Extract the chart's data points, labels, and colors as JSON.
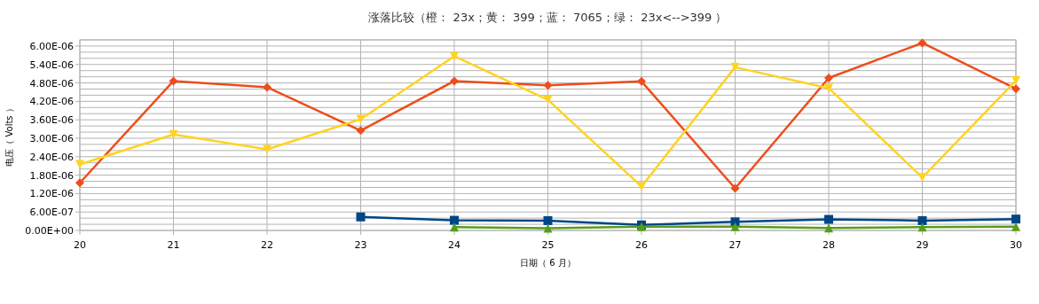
{
  "chart_data": {
    "type": "line",
    "title": "涨落比较（橙： 23x；黄： 399；蓝： 7065；绿： 23x<-->399 ）",
    "xlabel": "日期（ 6 月）",
    "ylabel": "电压（ Volts ）",
    "x": [
      20,
      21,
      22,
      23,
      24,
      25,
      26,
      27,
      28,
      29,
      30
    ],
    "series": [
      {
        "color": "#ee4d1b",
        "marker": "diamond",
        "values": [
          1.55e-06,
          4.86e-06,
          4.66e-06,
          3.25e-06,
          4.86e-06,
          4.72e-06,
          4.85e-06,
          1.37e-06,
          4.96e-06,
          6.1e-06,
          4.61e-06
        ]
      },
      {
        "color": "#ffd320",
        "marker": "triangle-down",
        "values": [
          2.15e-06,
          3.12e-06,
          2.64e-06,
          3.62e-06,
          5.67e-06,
          4.25e-06,
          1.43e-06,
          5.31e-06,
          4.63e-06,
          1.72e-06,
          4.88e-06
        ]
      },
      {
        "color": "#004586",
        "marker": "square",
        "values": [
          null,
          null,
          null,
          4.4e-07,
          3.3e-07,
          3.2e-07,
          1.8e-07,
          2.8e-07,
          3.6e-07,
          3.2e-07,
          3.7e-07
        ]
      },
      {
        "color": "#579d1c",
        "marker": "triangle",
        "values": [
          null,
          null,
          null,
          null,
          1.1e-07,
          7e-08,
          1.2e-07,
          1.2e-07,
          8e-08,
          1.1e-07,
          1.2e-07
        ]
      }
    ],
    "xlim": [
      20,
      30
    ],
    "xticks": [
      20,
      21,
      22,
      23,
      24,
      25,
      26,
      27,
      28,
      29,
      30
    ],
    "ylim": [
      0,
      6.2e-06
    ],
    "yticks": [
      {
        "value": 0,
        "label": "0.00E+00"
      },
      {
        "value": 2e-07,
        "label": null
      },
      {
        "value": 4e-07,
        "label": null
      },
      {
        "value": 6e-07,
        "label": "6.00E-07"
      },
      {
        "value": 8e-07,
        "label": null
      },
      {
        "value": 1e-06,
        "label": null
      },
      {
        "value": 1.2e-06,
        "label": "1.20E-06"
      },
      {
        "value": 1.4e-06,
        "label": null
      },
      {
        "value": 1.6e-06,
        "label": null
      },
      {
        "value": 1.8e-06,
        "label": "1.80E-06"
      },
      {
        "value": 2e-06,
        "label": null
      },
      {
        "value": 2.2e-06,
        "label": null
      },
      {
        "value": 2.4e-06,
        "label": "2.40E-06"
      },
      {
        "value": 2.6e-06,
        "label": null
      },
      {
        "value": 2.8e-06,
        "label": null
      },
      {
        "value": 3e-06,
        "label": "3.00E-06"
      },
      {
        "value": 3.2e-06,
        "label": null
      },
      {
        "value": 3.4e-06,
        "label": null
      },
      {
        "value": 3.6e-06,
        "label": "3.60E-06"
      },
      {
        "value": 3.8e-06,
        "label": null
      },
      {
        "value": 4e-06,
        "label": null
      },
      {
        "value": 4.2e-06,
        "label": "4.20E-06"
      },
      {
        "value": 4.4e-06,
        "label": null
      },
      {
        "value": 4.6e-06,
        "label": null
      },
      {
        "value": 4.8e-06,
        "label": "4.80E-06"
      },
      {
        "value": 5e-06,
        "label": null
      },
      {
        "value": 5.2e-06,
        "label": null
      },
      {
        "value": 5.4e-06,
        "label": "5.40E-06"
      },
      {
        "value": 5.6e-06,
        "label": null
      },
      {
        "value": 5.8e-06,
        "label": null
      },
      {
        "value": 6e-06,
        "label": "6.00E-06"
      },
      {
        "value": 6.2e-06,
        "label": null
      }
    ],
    "grid": true,
    "line_style": "solid"
  }
}
